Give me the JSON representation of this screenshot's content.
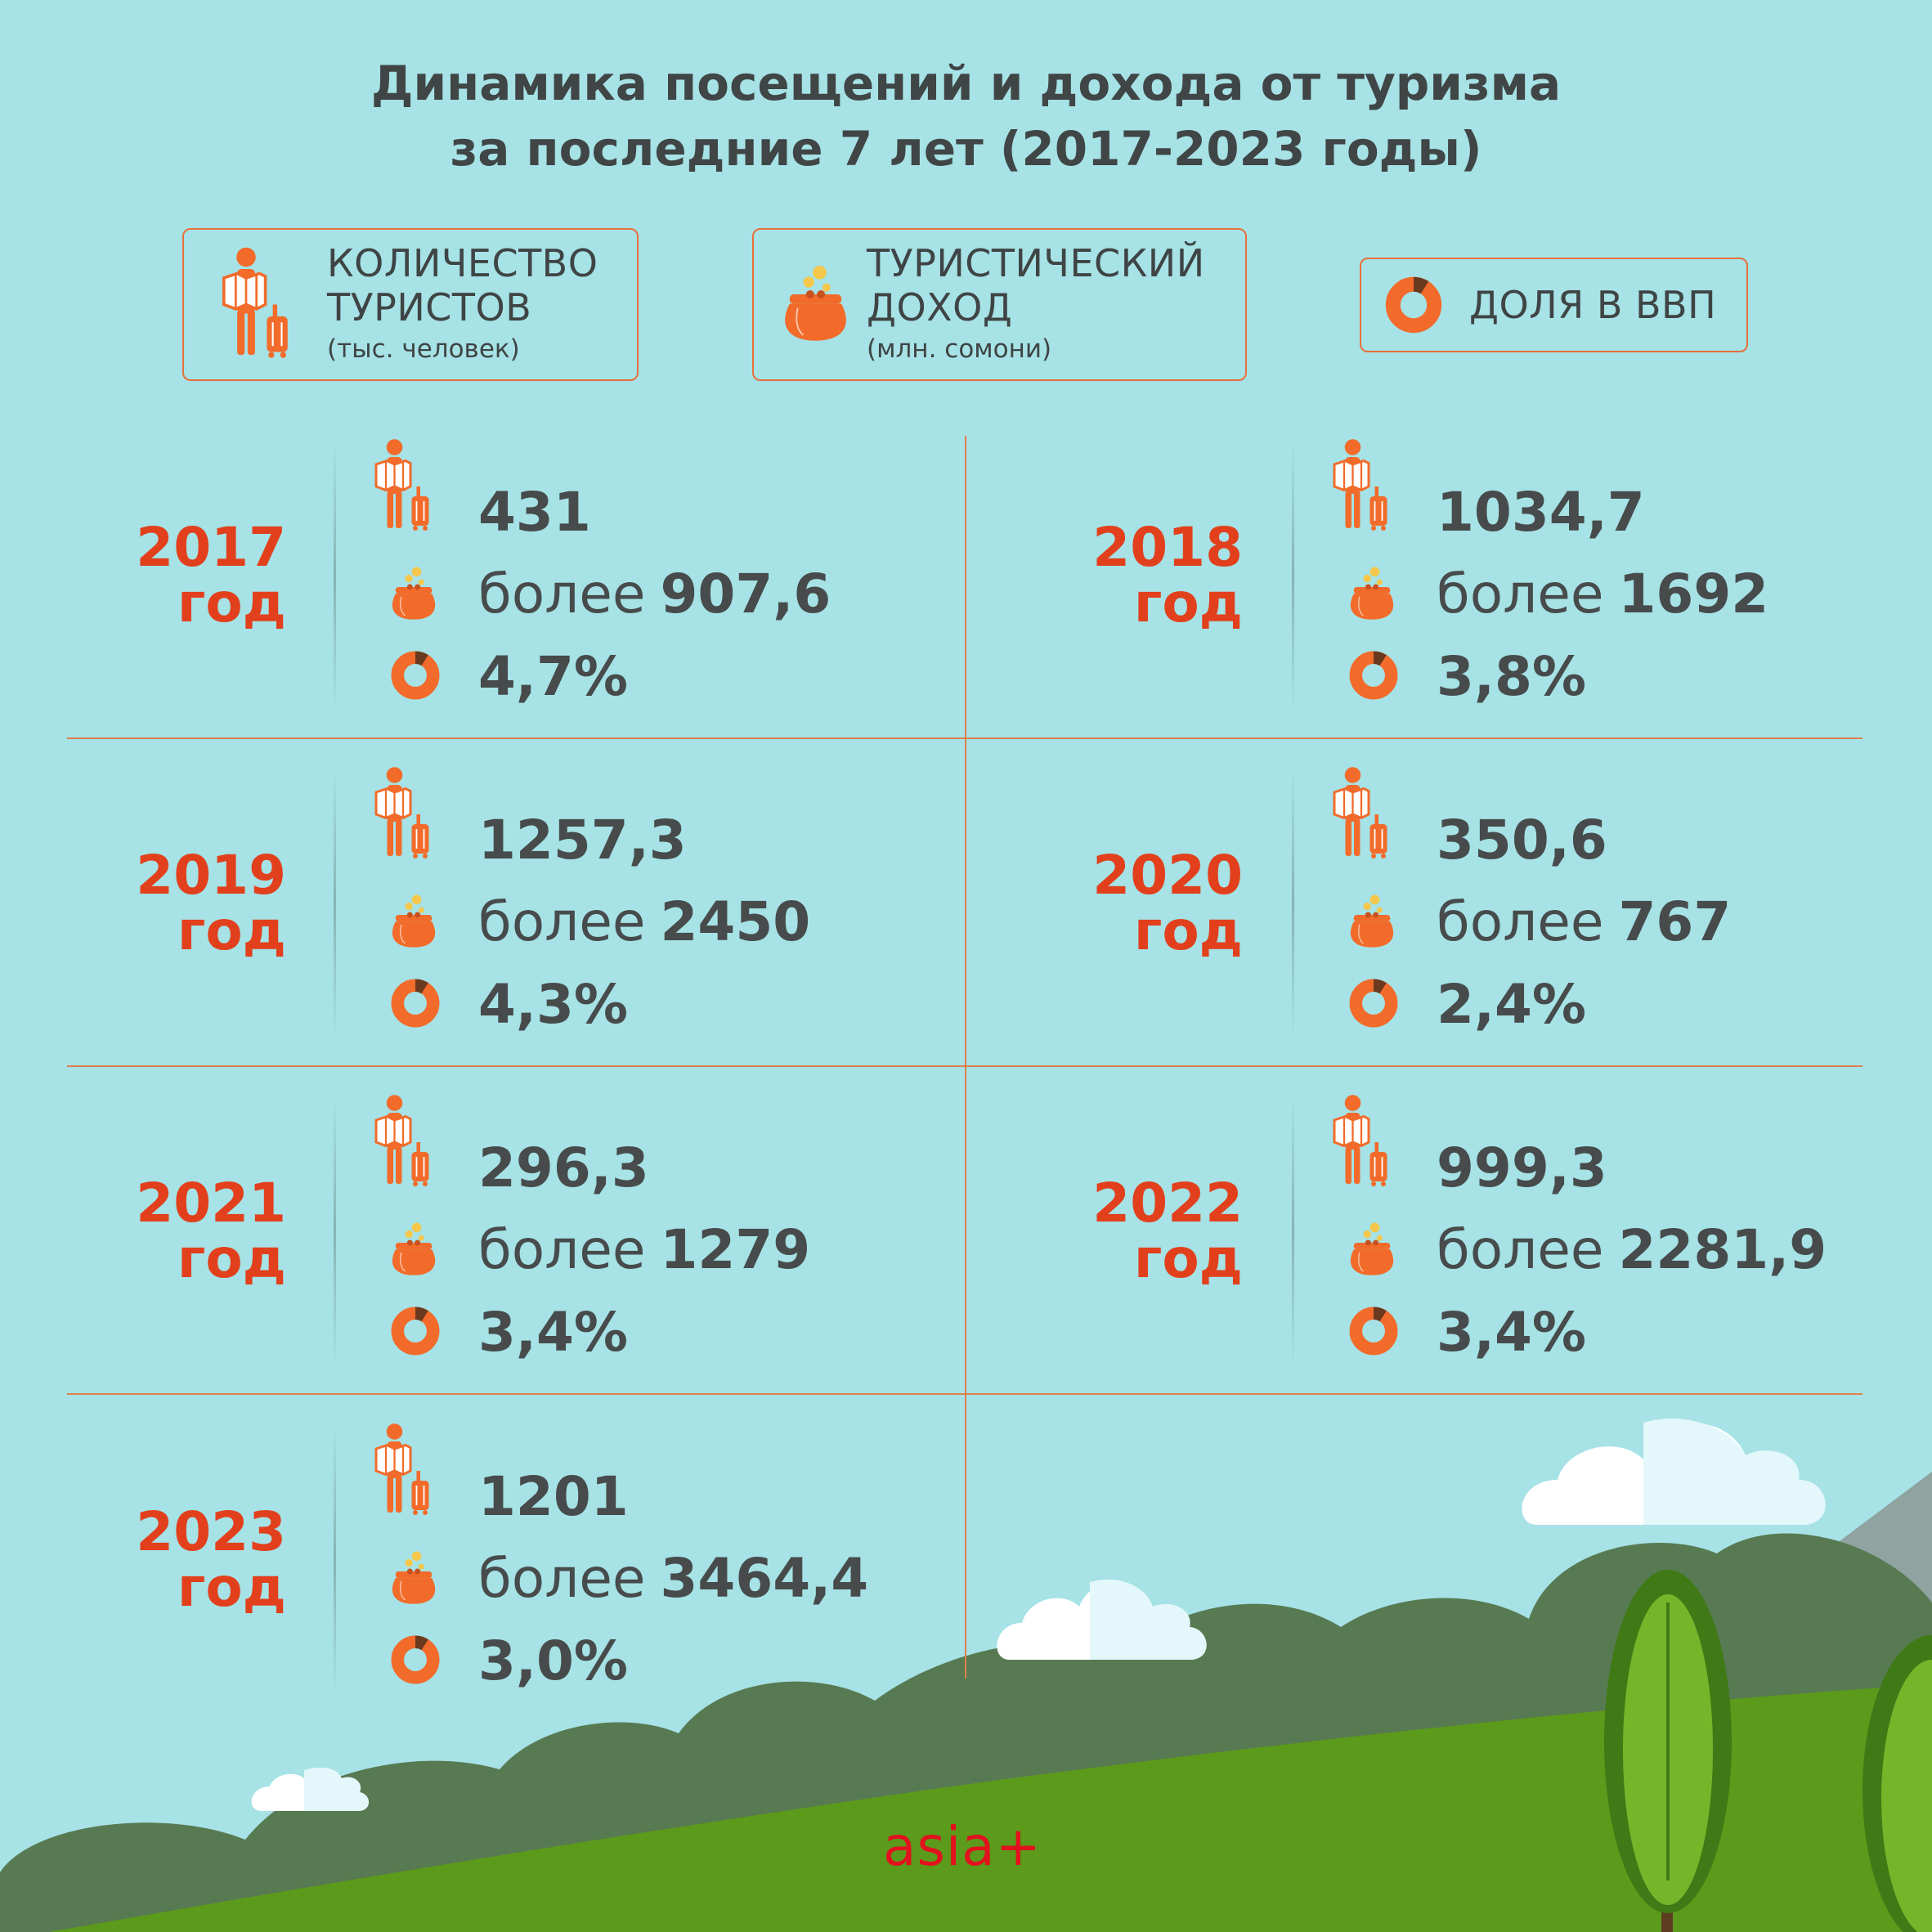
{
  "title": {
    "line1": "Динамика посещений и дохода от туризма",
    "line2": "за последние 7 лет (2017-2023 годы)"
  },
  "legend": {
    "tourists_label_1": "КОЛИЧЕСТВО",
    "tourists_label_2": "ТУРИСТОВ",
    "tourists_unit": "(тыс. человек)",
    "income_label_1": "ТУРИСТИЧЕСКИЙ",
    "income_label_2": "ДОХОД",
    "income_unit": "(млн. сомони)",
    "gdp_label": "ДОЛЯ В ВВП"
  },
  "prefix": "более",
  "years": [
    {
      "year": "2017",
      "suffix": "год",
      "tourists": "431",
      "income": "907,6",
      "gdp": "4,7%"
    },
    {
      "year": "2018",
      "suffix": "год",
      "tourists": "1034,7",
      "income": "1692",
      "gdp": "3,8%"
    },
    {
      "year": "2019",
      "suffix": "год",
      "tourists": "1257,3",
      "income": "2450",
      "gdp": "4,3%"
    },
    {
      "year": "2020",
      "suffix": "год",
      "tourists": "350,6",
      "income": "767",
      "gdp": "2,4%"
    },
    {
      "year": "2021",
      "suffix": "год",
      "tourists": "296,3",
      "income": "1279",
      "gdp": "3,4%"
    },
    {
      "year": "2022",
      "suffix": "год",
      "tourists": "999,3",
      "income": "2281,9",
      "gdp": "3,4%"
    },
    {
      "year": "2023",
      "suffix": "год",
      "tourists": "1201",
      "income": "3464,4",
      "gdp": "3,0%"
    }
  ],
  "brand": "asia+",
  "colors": {
    "background": "#a6e2e6",
    "accent_orange": "#f26b2a",
    "year_red": "#e2401c",
    "text_dark": "#474b4b",
    "grass": "#5c9a1b",
    "hills": "#587a52",
    "logo_red": "#e1121d"
  },
  "icons": [
    "tourist-icon",
    "purse-icon",
    "donut-icon",
    "cloud-icon",
    "tree-icon"
  ]
}
